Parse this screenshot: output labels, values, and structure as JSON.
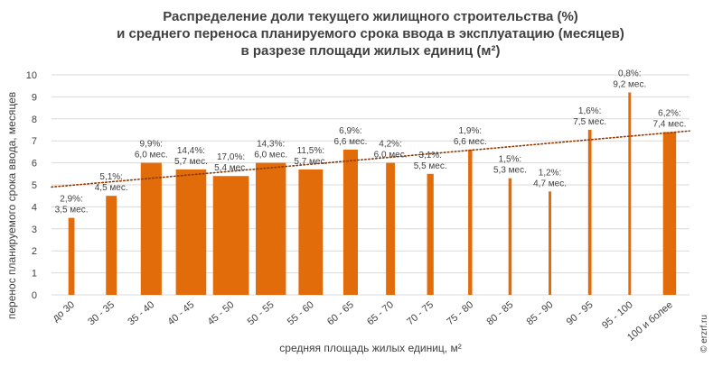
{
  "chart_data": {
    "type": "bar",
    "title_lines": [
      "Распределение доли текущего жилищного строительства (%)",
      "и среднего переноса планируемого срока ввода в эксплуатацию (месяцев)",
      "в разрезе площади жилых единиц (м²)"
    ],
    "xlabel": "средняя площадь жилых единиц, м²",
    "ylabel": "перенос планируемого срока ввода, месяцев",
    "ylim": [
      0,
      10
    ],
    "yticks": [
      "0",
      "1",
      "2",
      "3",
      "4",
      "5",
      "6",
      "7",
      "8",
      "9",
      "10"
    ],
    "grid": true,
    "categories": [
      "до 30",
      "30 - 35",
      "35 - 40",
      "40 - 45",
      "45 - 50",
      "50 - 55",
      "55 - 60",
      "60 - 65",
      "65 - 70",
      "70 - 75",
      "75 - 80",
      "80 - 85",
      "85 - 90",
      "90 - 95",
      "95 - 100",
      "100 и более"
    ],
    "values": [
      3.5,
      4.5,
      6.0,
      5.7,
      5.4,
      6.0,
      5.7,
      6.6,
      6.0,
      5.5,
      6.6,
      5.3,
      4.7,
      7.5,
      9.2,
      7.4
    ],
    "shares": [
      2.9,
      5.1,
      9.9,
      14.4,
      17.0,
      14.3,
      11.5,
      6.9,
      4.2,
      3.1,
      1.9,
      1.5,
      1.2,
      1.6,
      0.8,
      6.2
    ],
    "data_labels": [
      [
        "2,9%:",
        "3,5 мес."
      ],
      [
        "5,1%:",
        "4,5 мес."
      ],
      [
        "9,9%:",
        "6,0 мес."
      ],
      [
        "14,4%:",
        "5,7 мес."
      ],
      [
        "17,0%:",
        "5,4 мес."
      ],
      [
        "14,3%:",
        "6,0 мес."
      ],
      [
        "11,5%:",
        "5,7 мес."
      ],
      [
        "6,9%:",
        "6,6 мес."
      ],
      [
        "4,2%:",
        "6,0 мес."
      ],
      [
        "3,1%:",
        "5,5 мес."
      ],
      [
        "1,9%:",
        "6,6 мес."
      ],
      [
        "1,5%:",
        "5,3 мес."
      ],
      [
        "1,2%:",
        "4,7 мес."
      ],
      [
        "1,6%:",
        "7,5 мес."
      ],
      [
        "0,8%:",
        "9,2 мес."
      ],
      [
        "6,2%:",
        "7,4 мес."
      ]
    ],
    "trendline": {
      "style": "dotted",
      "start": 4.9,
      "end": 7.45
    },
    "colors": {
      "bar": "#E36C0A",
      "trend": "#8B3A0A",
      "grid": "#D9D9D9",
      "text": "#404040"
    },
    "watermark": "© erzrf.ru"
  }
}
